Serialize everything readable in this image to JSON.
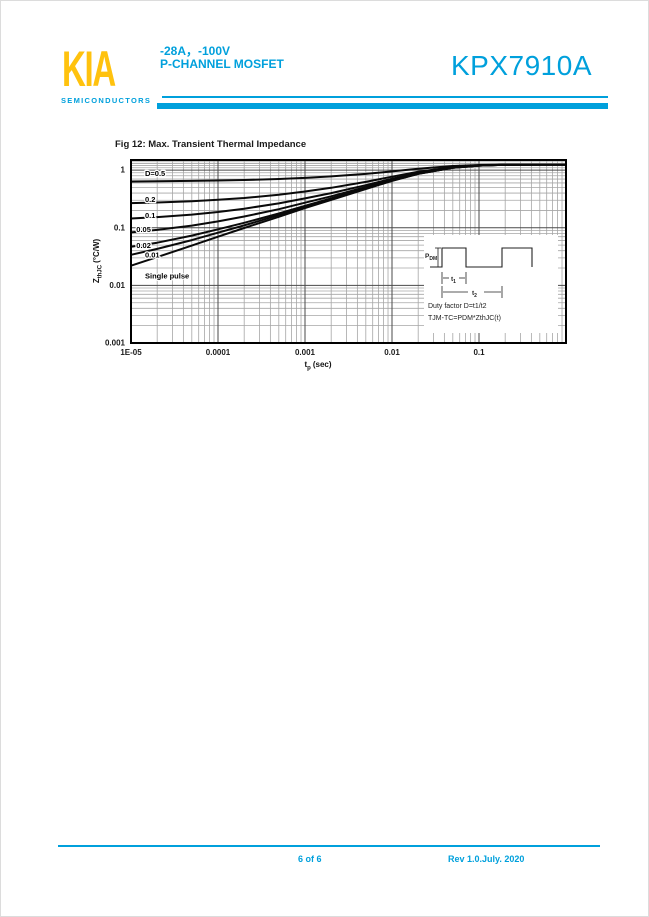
{
  "page": {
    "header": {
      "logo_text": "KIA",
      "logo_subtext": "SEMICONDUCTORS",
      "rating_line": "-28A，-100V",
      "type_line": "P-CHANNEL MOSFET",
      "part_number": "KPX7910A",
      "accent_color": "#00A0DC",
      "logo_color": "#FFC20E"
    },
    "figure": {
      "title": "Fig 12: Max. Transient Thermal Impedance"
    },
    "footer": {
      "page_info": "6 of 6",
      "revision": "Rev 1.0.July. 2020"
    }
  },
  "chart_data": {
    "type": "line",
    "title": "Fig 12: Max. Transient Thermal Impedance",
    "x_scale": "log",
    "y_scale": "log",
    "grid": true,
    "legend_position": "inline-labels",
    "xlim": [
      1e-05,
      1
    ],
    "ylim": [
      0.001,
      1.5
    ],
    "x_axis": {
      "label_main": "t",
      "label_sub": "p",
      "label_unit": "(sec)"
    },
    "y_axis": {
      "label_main": "Z",
      "label_sub": "thJC",
      "label_unit": "(°C/W)"
    },
    "x_ticks": [
      {
        "v": 1e-05,
        "label": "1E-05"
      },
      {
        "v": 0.0001,
        "label": "0.0001"
      },
      {
        "v": 0.001,
        "label": "0.001"
      },
      {
        "v": 0.01,
        "label": "0.01"
      },
      {
        "v": 0.1,
        "label": "0.1"
      }
    ],
    "y_ticks": [
      {
        "v": 1,
        "label": "1"
      },
      {
        "v": 0.1,
        "label": "0.1"
      },
      {
        "v": 0.01,
        "label": "0.01"
      },
      {
        "v": 0.001,
        "label": "0.001"
      }
    ],
    "x": [
      1e-05,
      2e-05,
      5e-05,
      0.0001,
      0.0002,
      0.0005,
      0.001,
      0.002,
      0.005,
      0.01,
      0.02,
      0.05,
      0.1,
      0.2,
      0.5,
      1
    ],
    "series": [
      {
        "name": "D=0.5",
        "label": "D=0.5",
        "label_at": [
          1.45e-05,
          0.88
        ],
        "values": [
          0.636,
          0.641,
          0.65,
          0.66,
          0.675,
          0.703,
          0.735,
          0.778,
          0.86,
          0.95,
          1.06,
          1.18,
          1.23,
          1.25,
          1.25,
          1.25
        ]
      },
      {
        "name": "0.2",
        "label": "0.2",
        "label_at": [
          1.45e-05,
          0.31
        ],
        "values": [
          0.268,
          0.275,
          0.289,
          0.306,
          0.329,
          0.374,
          0.426,
          0.494,
          0.626,
          0.77,
          0.938,
          1.13,
          1.21,
          1.24,
          1.25,
          1.25
        ]
      },
      {
        "name": "0.1",
        "label": "0.1",
        "label_at": [
          1.45e-05,
          0.163
        ],
        "values": [
          0.145,
          0.153,
          0.169,
          0.188,
          0.214,
          0.265,
          0.323,
          0.4,
          0.548,
          0.71,
          0.899,
          1.12,
          1.21,
          1.24,
          1.25,
          1.25
        ]
      },
      {
        "name": "0.05",
        "label": "0.05",
        "label_at": [
          1.15e-05,
          0.094
        ],
        "values": [
          0.083,
          0.092,
          0.109,
          0.129,
          0.157,
          0.21,
          0.272,
          0.352,
          0.509,
          0.68,
          0.88,
          1.11,
          1.2,
          1.24,
          1.25,
          1.25
        ]
      },
      {
        "name": "0.02",
        "label": "0.02",
        "label_at": [
          1.15e-05,
          0.049
        ],
        "values": [
          0.047,
          0.055,
          0.073,
          0.094,
          0.122,
          0.177,
          0.241,
          0.324,
          0.486,
          0.662,
          0.868,
          1.1,
          1.2,
          1.24,
          1.25,
          1.25
        ]
      },
      {
        "name": "0.01",
        "label": "0.01",
        "label_at": [
          1.45e-05,
          0.0335
        ],
        "values": [
          0.034,
          0.043,
          0.061,
          0.082,
          0.11,
          0.166,
          0.23,
          0.314,
          0.478,
          0.656,
          0.864,
          1.1,
          1.2,
          1.24,
          1.25,
          1.25
        ]
      },
      {
        "name": "Single pulse",
        "label": "Single pulse",
        "label_at": [
          1.45e-05,
          0.0145
        ],
        "values": [
          0.022,
          0.031,
          0.049,
          0.07,
          0.099,
          0.155,
          0.22,
          0.305,
          0.47,
          0.65,
          0.86,
          1.1,
          1.2,
          1.24,
          1.25,
          1.25
        ]
      }
    ],
    "inset": {
      "pdm_main": "P",
      "pdm_sub": "DM",
      "t1_main": "t",
      "t1_sub": "1",
      "t2_main": "t",
      "t2_sub": "2",
      "duty_line": "Duty factor D=t1/t2",
      "formula_line": "TJM-TC=PDM*ZthJC(t)"
    }
  }
}
